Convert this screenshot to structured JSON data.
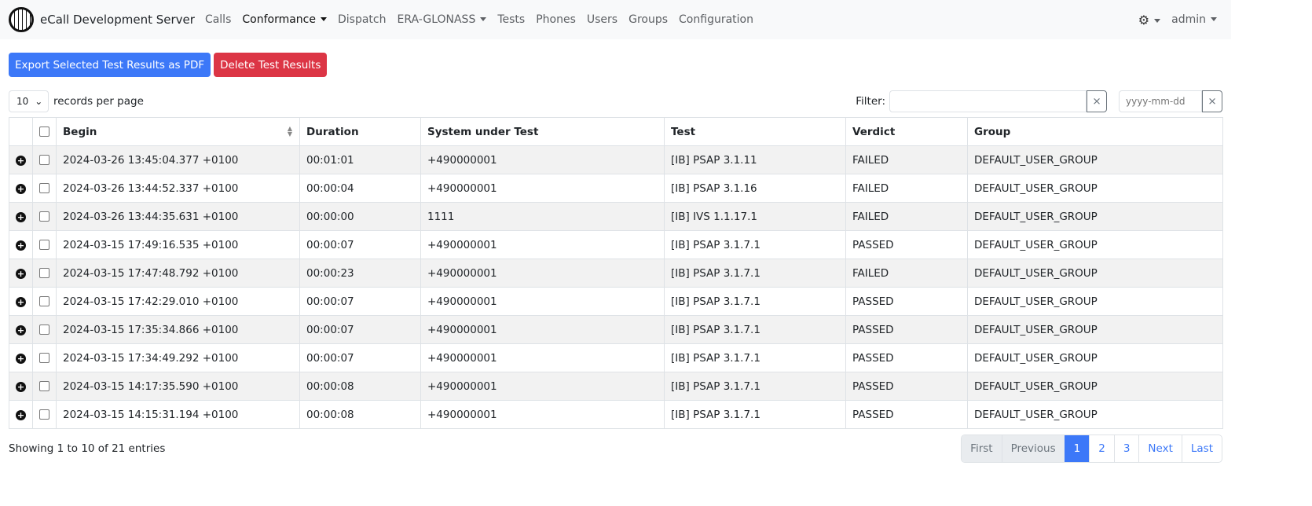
{
  "nav": {
    "brand": "eCall Development Server",
    "items": [
      {
        "label": "Calls",
        "dropdown": false
      },
      {
        "label": "Conformance",
        "dropdown": true,
        "active": true
      },
      {
        "label": "Dispatch",
        "dropdown": false
      },
      {
        "label": "ERA-GLONASS",
        "dropdown": true
      },
      {
        "label": "Tests",
        "dropdown": false
      },
      {
        "label": "Phones",
        "dropdown": false
      },
      {
        "label": "Users",
        "dropdown": false
      },
      {
        "label": "Groups",
        "dropdown": false
      },
      {
        "label": "Configuration",
        "dropdown": false
      }
    ],
    "user": "admin",
    "theme_icon": "gear-icon"
  },
  "actions": {
    "export": "Export Selected Test Results as PDF",
    "delete": "Delete Test Results"
  },
  "controls": {
    "page_size": "10",
    "records_label": "records per page",
    "filter_label": "Filter:",
    "filter_value": "",
    "date_placeholder": "yyyy-mm-dd",
    "clear": "×"
  },
  "table": {
    "headers": [
      "Begin",
      "Duration",
      "System under Test",
      "Test",
      "Verdict",
      "Group"
    ],
    "rows": [
      [
        "2024-03-26 13:45:04.377 +0100",
        "00:01:01",
        "+490000001",
        "[IB] PSAP 3.1.11",
        "FAILED",
        "DEFAULT_USER_GROUP"
      ],
      [
        "2024-03-26 13:44:52.337 +0100",
        "00:00:04",
        "+490000001",
        "[IB] PSAP 3.1.16",
        "FAILED",
        "DEFAULT_USER_GROUP"
      ],
      [
        "2024-03-26 13:44:35.631 +0100",
        "00:00:00",
        "1111",
        "[IB] IVS 1.1.17.1",
        "FAILED",
        "DEFAULT_USER_GROUP"
      ],
      [
        "2024-03-15 17:49:16.535 +0100",
        "00:00:07",
        "+490000001",
        "[IB] PSAP 3.1.7.1",
        "PASSED",
        "DEFAULT_USER_GROUP"
      ],
      [
        "2024-03-15 17:47:48.792 +0100",
        "00:00:23",
        "+490000001",
        "[IB] PSAP 3.1.7.1",
        "FAILED",
        "DEFAULT_USER_GROUP"
      ],
      [
        "2024-03-15 17:42:29.010 +0100",
        "00:00:07",
        "+490000001",
        "[IB] PSAP 3.1.7.1",
        "PASSED",
        "DEFAULT_USER_GROUP"
      ],
      [
        "2024-03-15 17:35:34.866 +0100",
        "00:00:07",
        "+490000001",
        "[IB] PSAP 3.1.7.1",
        "PASSED",
        "DEFAULT_USER_GROUP"
      ],
      [
        "2024-03-15 17:34:49.292 +0100",
        "00:00:07",
        "+490000001",
        "[IB] PSAP 3.1.7.1",
        "PASSED",
        "DEFAULT_USER_GROUP"
      ],
      [
        "2024-03-15 14:17:35.590 +0100",
        "00:00:08",
        "+490000001",
        "[IB] PSAP 3.1.7.1",
        "PASSED",
        "DEFAULT_USER_GROUP"
      ],
      [
        "2024-03-15 14:15:31.194 +0100",
        "00:00:08",
        "+490000001",
        "[IB] PSAP 3.1.7.1",
        "PASSED",
        "DEFAULT_USER_GROUP"
      ]
    ]
  },
  "footer": {
    "info": "Showing 1 to 10 of 21 entries",
    "pages": [
      {
        "label": "First",
        "state": "disabled"
      },
      {
        "label": "Previous",
        "state": "disabled"
      },
      {
        "label": "1",
        "state": "current"
      },
      {
        "label": "2",
        "state": "link"
      },
      {
        "label": "3",
        "state": "link"
      },
      {
        "label": "Next",
        "state": "link"
      },
      {
        "label": "Last",
        "state": "link"
      }
    ]
  },
  "colors": {
    "primary": "#3c78f8",
    "danger": "#dc3545"
  }
}
